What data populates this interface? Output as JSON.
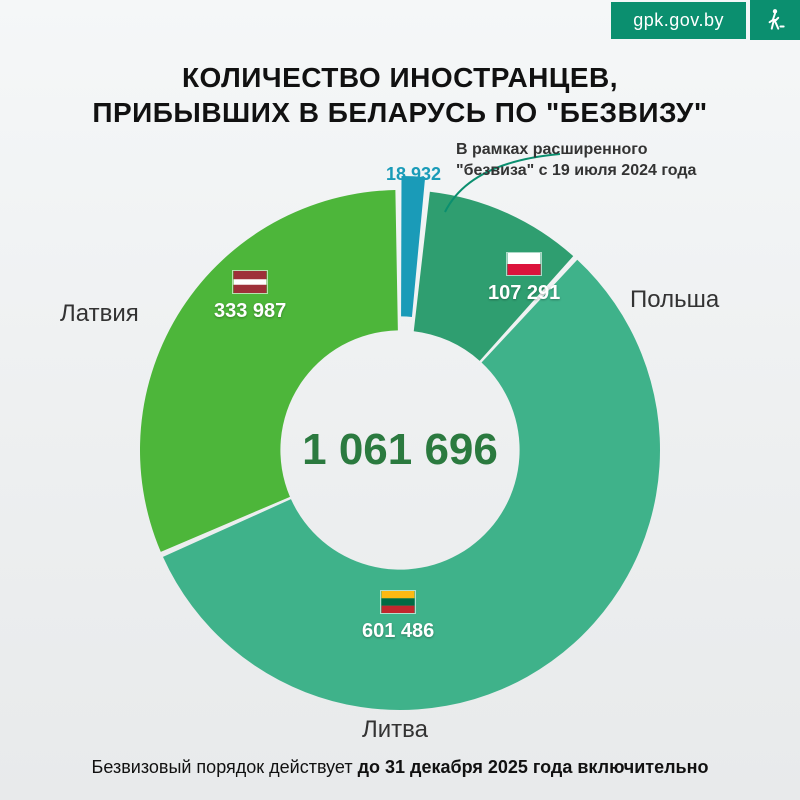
{
  "header": {
    "site": "gpk.gov.by"
  },
  "title_line1": "КОЛИЧЕСТВО ИНОСТРАНЦЕВ,",
  "title_line2": "ПРИБЫВШИХ В БЕЛАРУСЬ ПО \"БЕЗВИЗУ\"",
  "chart": {
    "type": "donut",
    "total_label": "1 061 696",
    "total_color": "#2b7a3f",
    "background": "#eef0f1",
    "inner_radius_pct": 46,
    "outer_radius_pct": 100,
    "gap_deg": 1.2,
    "slices": [
      {
        "key": "extended",
        "label": "В рамках расширенного \"безвиза\" с 19 июля 2024 года",
        "value": 18932,
        "value_label": "18 932",
        "color": "#1a9bb8",
        "exploded": true,
        "flag": null
      },
      {
        "key": "poland",
        "label": "Польша",
        "value": 107291,
        "value_label": "107 291",
        "color": "#2f9e70",
        "flag": "poland"
      },
      {
        "key": "lithuania",
        "label": "Литва",
        "value": 601486,
        "value_label": "601 486",
        "color": "#3fb28a",
        "flag": "lithuania"
      },
      {
        "key": "latvia",
        "label": "Латвия",
        "value": 333987,
        "value_label": "333 987",
        "color": "#4db63a",
        "flag": "latvia"
      }
    ]
  },
  "annotation": {
    "line1": "В рамках расширенного",
    "line2": "\"безвиза\" с 19 июля 2024 года"
  },
  "footer": {
    "prefix": "Безвизовый порядок действует ",
    "bold": "до 31 декабря 2025 года включительно"
  }
}
